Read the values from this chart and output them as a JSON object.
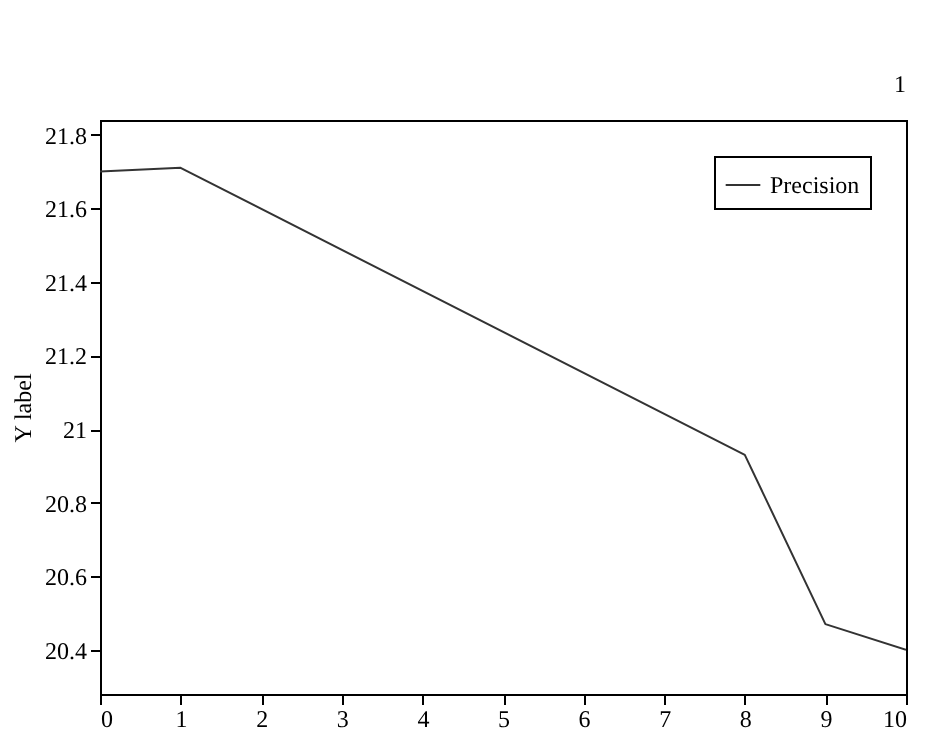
{
  "chart_data": {
    "type": "line",
    "x": [
      0,
      1,
      8,
      9,
      10
    ],
    "series": [
      {
        "name": "Precision",
        "color": "#333333",
        "values": [
          21.7,
          21.71,
          20.93,
          20.47,
          20.4
        ]
      }
    ],
    "ylabel": "Y label",
    "xlim": [
      0,
      10
    ],
    "xticks": [
      0,
      1,
      2,
      3,
      4,
      5,
      6,
      7,
      8,
      9,
      10
    ],
    "ylim": [
      20.28,
      21.84
    ],
    "yticks": [
      20.4,
      20.6,
      20.8,
      21,
      21.2,
      21.4,
      21.6,
      21.8
    ],
    "grid": false,
    "legend": "top right",
    "marker": "none",
    "line_style": "solid",
    "annotations": [
      "1"
    ]
  }
}
